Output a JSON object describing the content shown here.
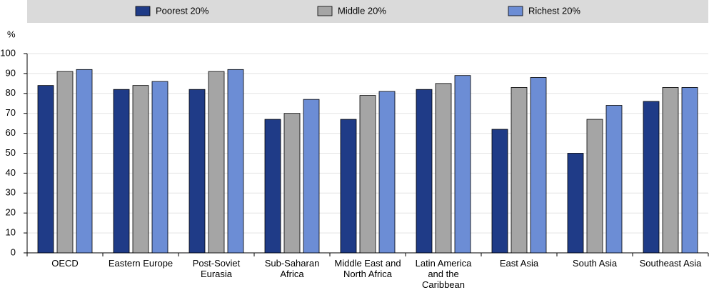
{
  "chart_data": {
    "type": "bar",
    "y_label": "%",
    "categories": [
      "OECD",
      "Eastern Europe",
      "Post-Soviet Eurasia",
      "Sub-Saharan Africa",
      "Middle East and North Africa",
      "Latin America and the Caribbean",
      "East Asia",
      "South Asia",
      "Southeast Asia"
    ],
    "series": [
      {
        "name": "Poorest 20%",
        "color": "#1f3b87",
        "values": [
          84,
          82,
          82,
          67,
          67,
          82,
          62,
          50,
          76
        ]
      },
      {
        "name": "Middle 20%",
        "color": "#a5a5a5",
        "values": [
          91,
          84,
          91,
          70,
          79,
          85,
          83,
          67,
          83
        ]
      },
      {
        "name": "Richest 20%",
        "color": "#6c8dd5",
        "values": [
          92,
          86,
          92,
          77,
          81,
          89,
          88,
          74,
          83
        ]
      }
    ],
    "ylim": [
      0,
      100
    ],
    "yticks": [
      0,
      10,
      20,
      30,
      40,
      50,
      60,
      70,
      80,
      90,
      100
    ],
    "grid": true,
    "legend": "top"
  }
}
